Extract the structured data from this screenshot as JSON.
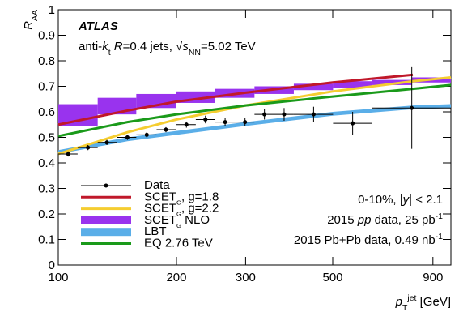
{
  "chart_data": {
    "type": "scatter",
    "xlabel": [
      {
        "text": "p",
        "italic": true
      },
      {
        "text": "T",
        "shift": "sub"
      },
      {
        "text": "jet",
        "shift": "super"
      },
      {
        "text": " [GeV]"
      }
    ],
    "ylabel": [
      {
        "text": "R",
        "italic": true
      },
      {
        "text": "AA",
        "shift": "sub"
      }
    ],
    "log_x": true,
    "xlim": [
      100,
      1000
    ],
    "ylim": [
      0,
      1
    ],
    "xticks": [
      100,
      200,
      300,
      500,
      900
    ],
    "yticks": [
      0,
      0.1,
      0.2,
      0.3,
      0.4,
      0.5,
      0.6,
      0.7,
      0.8,
      0.9,
      1
    ],
    "legend": "lower left",
    "annotations": [
      {
        "position": "upper left",
        "segments": [
          {
            "text": "ATLAS",
            "italic": true,
            "bold": true
          }
        ]
      },
      {
        "position": "upper left",
        "segments": [
          {
            "text": "anti-"
          },
          {
            "text": "k",
            "italic": true
          },
          {
            "text": "t",
            "shift": "sub"
          },
          {
            "text": " R",
            "italic": true
          },
          {
            "text": "=0.4 jets, √"
          },
          {
            "text": "s",
            "italic": true
          },
          {
            "text": "NN",
            "shift": "sub"
          },
          {
            "text": "=5.02 TeV"
          }
        ]
      },
      {
        "position": "lower right",
        "segments": [
          {
            "text": "0-10%, |"
          },
          {
            "text": "y",
            "italic": true
          },
          {
            "text": "| < 2.1"
          }
        ]
      },
      {
        "position": "lower right",
        "segments": [
          {
            "text": "2015 "
          },
          {
            "text": "pp",
            "italic": true
          },
          {
            "text": " data, 25 pb"
          },
          {
            "text": "-1",
            "shift": "super"
          }
        ]
      },
      {
        "position": "lower right",
        "segments": [
          {
            "text": "2015 Pb+Pb data, 0.49 nb"
          },
          {
            "text": "-1",
            "shift": "super"
          }
        ]
      }
    ],
    "series": [
      {
        "name": [
          {
            "text": "Data"
          }
        ],
        "kind": "points",
        "color": "#000000",
        "x": [
          106,
          119,
          133,
          150,
          168,
          188,
          212,
          237,
          266,
          299,
          335,
          376,
          447,
          562,
          795
        ],
        "x_low": [
          100,
          112,
          126,
          141,
          158,
          178,
          200,
          224,
          251,
          282,
          316,
          355,
          398,
          501,
          631
        ],
        "x_high": [
          112,
          126,
          141,
          158,
          178,
          200,
          224,
          251,
          282,
          316,
          355,
          398,
          501,
          631,
          1000
        ],
        "values": [
          0.435,
          0.46,
          0.48,
          0.5,
          0.51,
          0.53,
          0.55,
          0.57,
          0.56,
          0.56,
          0.59,
          0.59,
          0.59,
          0.555,
          0.615
        ],
        "errors": [
          0.01,
          0.01,
          0.01,
          0.01,
          0.01,
          0.01,
          0.012,
          0.015,
          0.015,
          0.015,
          0.02,
          0.025,
          0.03,
          0.045,
          0.16
        ]
      },
      {
        "name": [
          {
            "text": "SCET"
          },
          {
            "text": "G",
            "shift": "sub"
          },
          {
            "text": ", g=1.8"
          }
        ],
        "kind": "line",
        "color": "#c0182a",
        "x": [
          100,
          150,
          200,
          300,
          500,
          800
        ],
        "values": [
          0.55,
          0.605,
          0.64,
          0.675,
          0.715,
          0.745
        ]
      },
      {
        "name": [
          {
            "text": "SCET"
          },
          {
            "text": "G",
            "shift": "sub"
          },
          {
            "text": ", g=2.2"
          }
        ],
        "kind": "line",
        "color": "#f5cd30",
        "x": [
          100,
          150,
          200,
          300,
          500,
          800,
          1000
        ],
        "values": [
          0.435,
          0.52,
          0.57,
          0.625,
          0.68,
          0.72,
          0.735
        ]
      },
      {
        "name": [
          {
            "text": "SCET"
          },
          {
            "text": "G",
            "shift": "sub"
          },
          {
            "text": " NLO"
          }
        ],
        "kind": "boxes",
        "color": "#9933ee",
        "edges": [
          100,
          126,
          158,
          200,
          251,
          316,
          398,
          501,
          631,
          794,
          1000
        ],
        "low": [
          0.545,
          0.59,
          0.615,
          0.635,
          0.655,
          0.67,
          0.685,
          0.695,
          0.705,
          0.715
        ],
        "high": [
          0.63,
          0.655,
          0.67,
          0.68,
          0.69,
          0.7,
          0.71,
          0.72,
          0.725,
          0.735
        ]
      },
      {
        "name": [
          {
            "text": "LBT"
          }
        ],
        "kind": "band",
        "color": "#5aaee8",
        "x": [
          100,
          150,
          200,
          300,
          500,
          800,
          1000
        ],
        "low": [
          0.435,
          0.485,
          0.51,
          0.545,
          0.585,
          0.61,
          0.615
        ],
        "high": [
          0.45,
          0.5,
          0.525,
          0.56,
          0.6,
          0.625,
          0.63
        ]
      },
      {
        "name": [
          {
            "text": "EQ 2.76 TeV"
          }
        ],
        "kind": "line",
        "color": "#1a9a1a",
        "x": [
          100,
          150,
          200,
          300,
          500,
          800,
          1000
        ],
        "values": [
          0.505,
          0.56,
          0.59,
          0.625,
          0.66,
          0.69,
          0.705
        ]
      }
    ]
  }
}
